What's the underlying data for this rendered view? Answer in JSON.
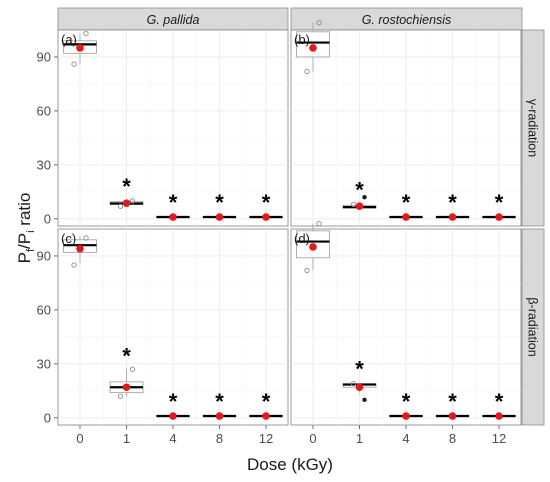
{
  "figure": {
    "y_axis_title_base": "P",
    "y_axis_title_sub1": "f",
    "y_axis_title_mid": "/P",
    "y_axis_title_sub2": "i",
    "y_axis_title_tail": " ratio",
    "x_axis_title": "Dose (kGy)",
    "columns": [
      "G. pallida",
      "G. rostochiensis"
    ],
    "rows": [
      "γ-radiation",
      "β-radiation"
    ],
    "panel_tags": [
      "(a)",
      "(b)",
      "(c)",
      "(d)"
    ],
    "significance_marker": "*"
  },
  "chart_data": {
    "type": "box",
    "facet_rows": [
      "γ-radiation",
      "β-radiation"
    ],
    "facet_cols": [
      "G. pallida",
      "G. rostochiensis"
    ],
    "categories": [
      "0",
      "1",
      "4",
      "8",
      "12"
    ],
    "y_ticks": [
      0,
      30,
      60,
      90
    ],
    "ylim": [
      -4,
      105
    ],
    "xlabel": "Dose (kGy)",
    "ylabel": "Pf/Pi ratio",
    "grid": true,
    "panels": [
      {
        "tag": "(a)",
        "row": "γ-radiation",
        "col": "G. pallida",
        "boxes": [
          {
            "dose": "0",
            "min": 86,
            "q1": 92,
            "median": 97,
            "q3": 99,
            "max": 103,
            "mean": 95,
            "points": [
              86,
              103
            ],
            "outliers": [],
            "significant": false
          },
          {
            "dose": "1",
            "min": 7,
            "q1": 8,
            "median": 8.5,
            "q3": 9.5,
            "max": 10.5,
            "mean": 8.7,
            "points": [
              7,
              10
            ],
            "outliers": [],
            "significant": true
          },
          {
            "dose": "4",
            "min": 0.5,
            "q1": 0.8,
            "median": 1,
            "q3": 1.2,
            "max": 1.5,
            "mean": 1,
            "points": [],
            "outliers": [],
            "significant": true
          },
          {
            "dose": "8",
            "min": 0.5,
            "q1": 0.8,
            "median": 1,
            "q3": 1.2,
            "max": 1.5,
            "mean": 1,
            "points": [],
            "outliers": [],
            "significant": true
          },
          {
            "dose": "12",
            "min": 0.5,
            "q1": 0.8,
            "median": 1,
            "q3": 1.2,
            "max": 1.5,
            "mean": 1,
            "points": [],
            "outliers": [],
            "significant": true
          }
        ]
      },
      {
        "tag": "(b)",
        "row": "γ-radiation",
        "col": "G. rostochiensis",
        "boxes": [
          {
            "dose": "0",
            "min": 82,
            "q1": 90,
            "median": 98,
            "q3": 104,
            "max": 109,
            "mean": 95,
            "points": [
              82,
              109
            ],
            "outliers": [],
            "significant": false
          },
          {
            "dose": "1",
            "min": 5.5,
            "q1": 6,
            "median": 6.5,
            "q3": 7.5,
            "max": 8.5,
            "mean": 7,
            "points": [
              8
            ],
            "outliers": [
              12
            ],
            "significant": true
          },
          {
            "dose": "4",
            "min": 0.5,
            "q1": 0.8,
            "median": 1,
            "q3": 1.2,
            "max": 1.5,
            "mean": 1,
            "points": [],
            "outliers": [],
            "significant": true
          },
          {
            "dose": "8",
            "min": 0.5,
            "q1": 0.8,
            "median": 1,
            "q3": 1.2,
            "max": 1.5,
            "mean": 1,
            "points": [],
            "outliers": [],
            "significant": true
          },
          {
            "dose": "12",
            "min": 0.5,
            "q1": 0.8,
            "median": 1,
            "q3": 1.2,
            "max": 1.5,
            "mean": 1,
            "points": [],
            "outliers": [],
            "significant": true
          }
        ]
      },
      {
        "tag": "(c)",
        "row": "β-radiation",
        "col": "G. pallida",
        "boxes": [
          {
            "dose": "0",
            "min": 86,
            "q1": 92,
            "median": 96,
            "q3": 99,
            "max": 101,
            "mean": 94,
            "points": [
              85,
              100
            ],
            "outliers": [],
            "significant": false
          },
          {
            "dose": "1",
            "min": 12,
            "q1": 14,
            "median": 17,
            "q3": 20,
            "max": 27,
            "mean": 17,
            "points": [
              12,
              27
            ],
            "outliers": [],
            "significant": true
          },
          {
            "dose": "4",
            "min": 0.5,
            "q1": 0.8,
            "median": 1,
            "q3": 1.2,
            "max": 1.5,
            "mean": 1,
            "points": [],
            "outliers": [],
            "significant": true
          },
          {
            "dose": "8",
            "min": 0.5,
            "q1": 0.8,
            "median": 1,
            "q3": 1.2,
            "max": 1.5,
            "mean": 1,
            "points": [],
            "outliers": [],
            "significant": true
          },
          {
            "dose": "12",
            "min": 0.5,
            "q1": 0.8,
            "median": 1,
            "q3": 1.2,
            "max": 1.5,
            "mean": 1,
            "points": [],
            "outliers": [],
            "significant": true
          }
        ]
      },
      {
        "tag": "(d)",
        "row": "β-radiation",
        "col": "G. rostochiensis",
        "boxes": [
          {
            "dose": "0",
            "min": 82,
            "q1": 89,
            "median": 98,
            "q3": 104,
            "max": 108,
            "mean": 95,
            "points": [
              82,
              108
            ],
            "outliers": [],
            "significant": false
          },
          {
            "dose": "1",
            "min": 14,
            "q1": 17,
            "median": 18.5,
            "q3": 19,
            "max": 19.5,
            "mean": 17,
            "points": [
              19
            ],
            "outliers": [
              10
            ],
            "significant": true
          },
          {
            "dose": "4",
            "min": 0.5,
            "q1": 0.8,
            "median": 1,
            "q3": 1.2,
            "max": 1.5,
            "mean": 1,
            "points": [],
            "outliers": [],
            "significant": true
          },
          {
            "dose": "8",
            "min": 0.5,
            "q1": 0.8,
            "median": 1,
            "q3": 1.2,
            "max": 1.5,
            "mean": 1,
            "points": [],
            "outliers": [],
            "significant": true
          },
          {
            "dose": "12",
            "min": 0.5,
            "q1": 0.8,
            "median": 1,
            "q3": 1.2,
            "max": 1.5,
            "mean": 1,
            "points": [],
            "outliers": [],
            "significant": true
          }
        ]
      }
    ]
  }
}
